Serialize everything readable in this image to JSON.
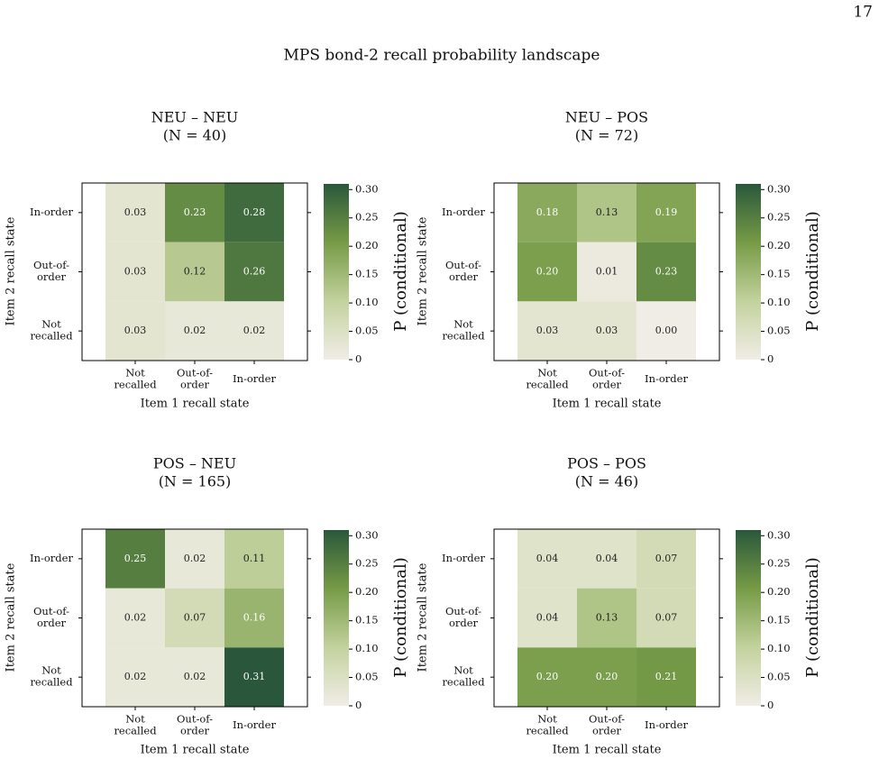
{
  "page_number": "17",
  "title": "MPS bond-2 recall probability landscape",
  "chart_data": [
    {
      "type": "heatmap",
      "title": "NEU – NEU",
      "subtitle": "(N = 40)",
      "x_label": "Item 1 recall state",
      "y_label": "Item 2 recall state",
      "x_categories": [
        "Not\nrecalled",
        "Out-of-\norder",
        "In-order"
      ],
      "y_categories": [
        "In-order",
        "Out-of-\norder",
        "Not\nrecalled"
      ],
      "values": [
        [
          0.03,
          0.23,
          0.28
        ],
        [
          0.03,
          0.12,
          0.26
        ],
        [
          0.03,
          0.02,
          0.02
        ]
      ],
      "value_labels": [
        [
          "0.03",
          "0.23",
          "0.28"
        ],
        [
          "0.03",
          "0.12",
          "0.26"
        ],
        [
          "0.03",
          "0.02",
          "0.02"
        ]
      ],
      "colorbar_label": "P (conditional)",
      "clim": [
        0,
        0.31
      ],
      "cticks": [
        0,
        0.05,
        {
          "value": 0.1,
          "label": "0.10"
        },
        0.15,
        {
          "value": 0.2,
          "label": "0.20"
        },
        0.25,
        {
          "value": 0.3,
          "label": "0.30"
        }
      ],
      "colormap": [
        "#f0ede6",
        "#c3d29e",
        "#769b46",
        "#2a573b"
      ]
    },
    {
      "type": "heatmap",
      "title": "NEU – POS",
      "subtitle": "(N = 72)",
      "x_label": "Item 1 recall state",
      "y_label": "Item 2 recall state",
      "x_categories": [
        "Not\nrecalled",
        "Out-of-\norder",
        "In-order"
      ],
      "y_categories": [
        "In-order",
        "Out-of-\norder",
        "Not\nrecalled"
      ],
      "values": [
        [
          0.18,
          0.13,
          0.19
        ],
        [
          0.2,
          0.01,
          0.23
        ],
        [
          0.03,
          0.03,
          0
        ]
      ],
      "value_labels": [
        [
          "0.18",
          "0.13",
          "0.19"
        ],
        [
          "0.20",
          "0.01",
          "0.23"
        ],
        [
          "0.03",
          "0.03",
          "0.00"
        ]
      ],
      "colorbar_label": "P (conditional)",
      "clim": [
        0,
        0.31
      ],
      "cticks": [
        0,
        0.05,
        {
          "value": 0.1,
          "label": "0.10"
        },
        0.15,
        {
          "value": 0.2,
          "label": "0.20"
        },
        0.25,
        {
          "value": 0.3,
          "label": "0.30"
        }
      ],
      "colormap": [
        "#f0ede6",
        "#c3d29e",
        "#769b46",
        "#2a573b"
      ]
    },
    {
      "type": "heatmap",
      "title": "POS – NEU",
      "subtitle": "(N = 165)",
      "x_label": "Item 1 recall state",
      "y_label": "Item 2 recall state",
      "x_categories": [
        "Not\nrecalled",
        "Out-of-\norder",
        "In-order"
      ],
      "y_categories": [
        "In-order",
        "Out-of-\norder",
        "Not\nrecalled"
      ],
      "values": [
        [
          0.25,
          0.02,
          0.11
        ],
        [
          0.02,
          0.07,
          0.16
        ],
        [
          0.02,
          0.02,
          0.31
        ]
      ],
      "value_labels": [
        [
          "0.25",
          "0.02",
          "0.11"
        ],
        [
          "0.02",
          "0.07",
          "0.16"
        ],
        [
          "0.02",
          "0.02",
          "0.31"
        ]
      ],
      "colorbar_label": "P (conditional)",
      "clim": [
        0,
        0.31
      ],
      "cticks": [
        0,
        0.05,
        {
          "value": 0.1,
          "label": "0.10"
        },
        0.15,
        {
          "value": 0.2,
          "label": "0.20"
        },
        0.25,
        {
          "value": 0.3,
          "label": "0.30"
        }
      ],
      "colormap": [
        "#f0ede6",
        "#c3d29e",
        "#769b46",
        "#2a573b"
      ]
    },
    {
      "type": "heatmap",
      "title": "POS – POS",
      "subtitle": "(N = 46)",
      "x_label": "Item 1 recall state",
      "y_label": "Item 2 recall state",
      "x_categories": [
        "Not\nrecalled",
        "Out-of-\norder",
        "In-order"
      ],
      "y_categories": [
        "In-order",
        "Out-of-\norder",
        "Not\nrecalled"
      ],
      "values": [
        [
          0.04,
          0.04,
          0.07
        ],
        [
          0.04,
          0.13,
          0.07
        ],
        [
          0.2,
          0.2,
          0.21
        ]
      ],
      "value_labels": [
        [
          "0.04",
          "0.04",
          "0.07"
        ],
        [
          "0.04",
          "0.13",
          "0.07"
        ],
        [
          "0.20",
          "0.20",
          "0.21"
        ]
      ],
      "colorbar_label": "P (conditional)",
      "clim": [
        0,
        0.31
      ],
      "cticks": [
        0,
        0.05,
        {
          "value": 0.1,
          "label": "0.10"
        },
        0.15,
        {
          "value": 0.2,
          "label": "0.20"
        },
        0.25,
        {
          "value": 0.3,
          "label": "0.30"
        }
      ],
      "colormap": [
        "#f0ede6",
        "#c3d29e",
        "#769b46",
        "#2a573b"
      ]
    }
  ]
}
